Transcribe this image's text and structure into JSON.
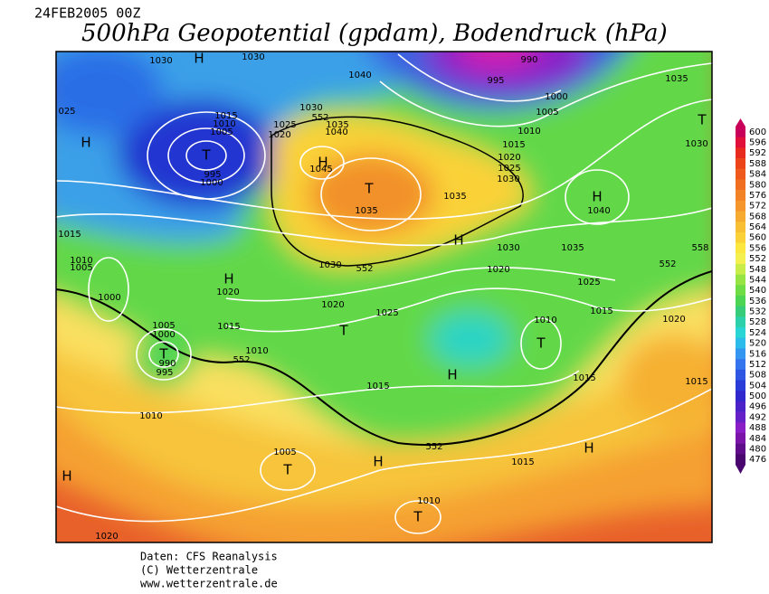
{
  "header": {
    "date": "24FEB2005 00Z",
    "title": "500hPa Geopotential (gpdam), Bodendruck (hPa)"
  },
  "map": {
    "labels": [
      "H",
      "1030",
      "1030",
      "H",
      "025",
      "1015",
      "1010",
      "1005",
      "T",
      "995",
      "1000",
      "1040",
      "1025",
      "1020",
      "1030",
      "552",
      "1035",
      "1040",
      "H",
      "1045",
      "T",
      "1035",
      "990",
      "995",
      "1000",
      "1005",
      "1010",
      "1015",
      "1020",
      "1025",
      "1030",
      "1035",
      "1035",
      "T",
      "1030",
      "H",
      "1040",
      "H",
      "1030",
      "1035",
      "558",
      "552",
      "1020",
      "1025",
      "1015",
      "1020",
      "1010",
      "T",
      "1015",
      "1015",
      "1030",
      "552",
      "H",
      "1020",
      "1020",
      "1025",
      "T",
      "1015",
      "1015",
      "1010",
      "1005",
      "1000",
      "1005",
      "1000",
      "T",
      "990",
      "995",
      "1010",
      "552",
      "1015",
      "H",
      "1010",
      "552",
      "H",
      "1005",
      "T",
      "H",
      "1015",
      "H",
      "1010",
      "T",
      "1020"
    ]
  },
  "colorbar": {
    "levels": [
      600,
      596,
      592,
      588,
      584,
      580,
      576,
      572,
      568,
      564,
      560,
      556,
      552,
      548,
      544,
      540,
      536,
      532,
      528,
      524,
      520,
      516,
      512,
      508,
      504,
      500,
      496,
      492,
      488,
      484,
      480,
      476
    ],
    "colors": [
      "#c8005a",
      "#e0103a",
      "#e82a1e",
      "#ec4418",
      "#ef5a1c",
      "#f06e20",
      "#f28226",
      "#f4962c",
      "#f6aa30",
      "#f8be34",
      "#fad238",
      "#fce640",
      "#f4f050",
      "#c8ec48",
      "#96e444",
      "#6edc44",
      "#4cd454",
      "#36cc7a",
      "#2cd0aa",
      "#28d4d4",
      "#2cbcec",
      "#3496f0",
      "#3474ec",
      "#2e56e2",
      "#2a3cd8",
      "#3028cc",
      "#4a22c8",
      "#6620c8",
      "#8a1ec6",
      "#7a14a8",
      "#5e0c8a",
      "#48066e"
    ]
  },
  "footer": {
    "lines": [
      "Daten: CFS Reanalysis",
      "(C) Wetterzentrale",
      "www.wetterzentrale.de"
    ]
  }
}
